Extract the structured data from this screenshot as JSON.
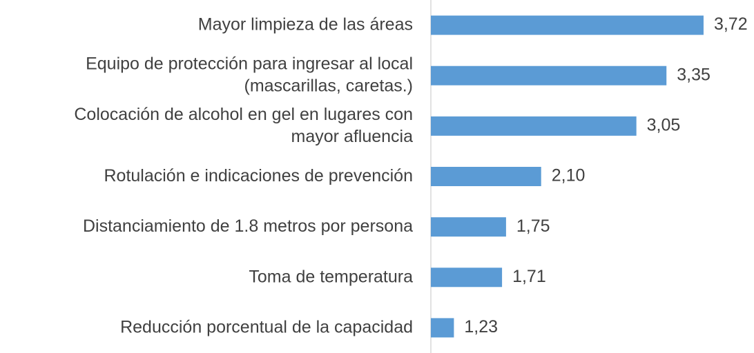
{
  "chart_data": {
    "type": "bar",
    "orientation": "horizontal",
    "categories": [
      "Mayor limpieza de las áreas",
      "Equipo de protección para ingresar al local\n(mascarillas, caretas.)",
      "Colocación de alcohol en gel en lugares con\nmayor afluencia",
      "Rotulación e indicaciones de prevención",
      "Distanciamiento de 1.8 metros por persona",
      "Toma de temperatura",
      "Reducción porcentual de la capacidad"
    ],
    "values": [
      3.72,
      3.35,
      3.05,
      2.1,
      1.75,
      1.71,
      1.23
    ],
    "value_labels": [
      "3,72",
      "3,35",
      "3,05",
      "2,10",
      "1,75",
      "1,71",
      "1,23"
    ],
    "color": "#5b9bd5",
    "xlim": [
      1,
      4
    ]
  }
}
